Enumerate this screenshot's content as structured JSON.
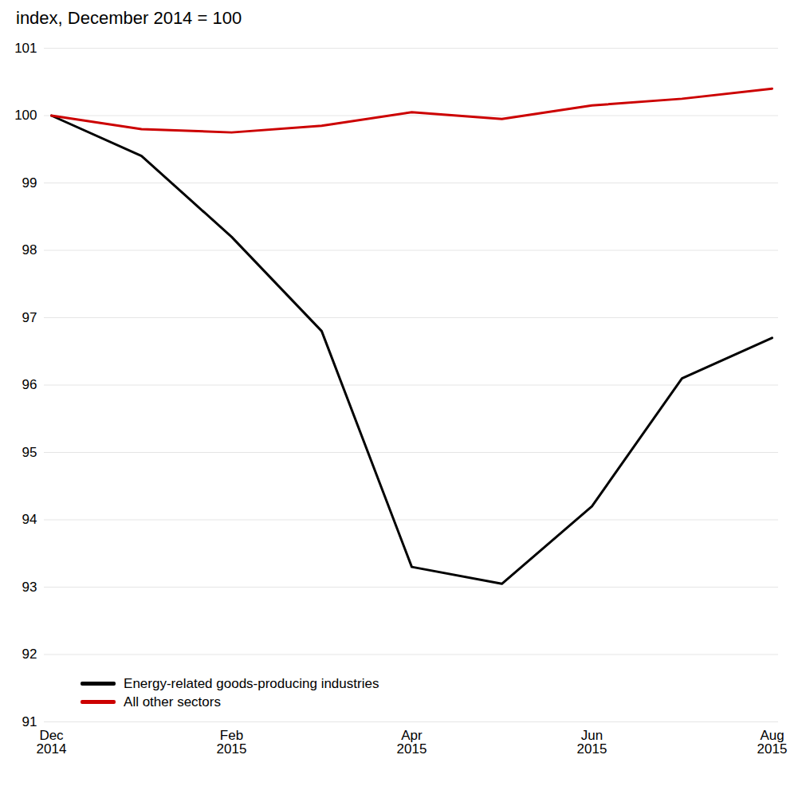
{
  "chart_data": {
    "type": "line",
    "title": "index, December 2014 = 100",
    "categories": [
      "Dec\n2014",
      null,
      "Feb\n2015",
      null,
      "Apr\n2015",
      null,
      "Jun\n2015",
      null,
      "Aug\n2015"
    ],
    "series": [
      {
        "name": "Energy-related goods-producing industries",
        "color": "#000000",
        "values": [
          100.0,
          99.4,
          98.2,
          96.8,
          93.3,
          93.05,
          94.2,
          96.1,
          96.7
        ]
      },
      {
        "name": "All other sectors",
        "color": "#cc0000",
        "values": [
          100.0,
          99.8,
          99.75,
          99.85,
          100.05,
          99.95,
          100.15,
          100.25,
          100.4
        ]
      }
    ],
    "ylim": [
      91,
      101
    ],
    "yticks": [
      91,
      92,
      93,
      94,
      95,
      96,
      97,
      98,
      99,
      100,
      101
    ],
    "grid": true,
    "legend": "lower left"
  }
}
